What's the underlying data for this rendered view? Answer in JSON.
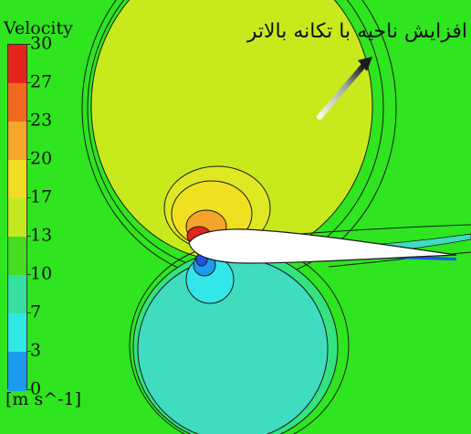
{
  "legend": {
    "title": "Velocity",
    "unit": "[m s^-1]",
    "levels": [
      "30",
      "27",
      "23",
      "20",
      "17",
      "13",
      "10",
      "7",
      "3",
      "0"
    ],
    "colors": [
      "#e3251c",
      "#f06a1e",
      "#f4a82a",
      "#f0dc22",
      "#c2e91f",
      "#44dd22",
      "#37e0a0",
      "#30e8e3",
      "#1c9bec",
      "#1a45d8"
    ]
  },
  "annotation": {
    "text": "افزایش ناحیه با تکانه بالاتر"
  },
  "field_colors": {
    "background": "#2ee51f",
    "high_lobe": "#c8ea1d",
    "mid_lobe": "#e6e51f",
    "peak_orange": "#f3a42a",
    "peak_red": "#e3261c",
    "low_lobe": "#3fdcbf",
    "cyan_core": "#33e6e8",
    "blue_core": "#1b55e6",
    "airfoil": "#ffffff",
    "contour_line": "#1a1a1a",
    "arrow": "#1a1a1a"
  }
}
